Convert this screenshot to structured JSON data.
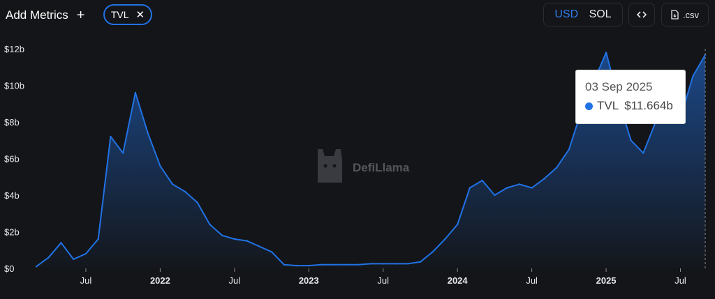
{
  "toolbar": {
    "add_metrics": "Add Metrics",
    "add_icon": "plus-icon",
    "metric_chip": "TVL",
    "chip_close_icon": "close-icon",
    "currency_usd": "USD",
    "currency_sol": "SOL",
    "active_currency": "USD",
    "embed_icon": "code-icon",
    "csv_label": ".csv",
    "csv_icon": "file-download-icon"
  },
  "watermark": {
    "text": "DefiLlama",
    "icon": "llama-logo-icon"
  },
  "tooltip": {
    "date": "03 Sep 2025",
    "series": "TVL",
    "value": "$11.664b"
  },
  "colors": {
    "line": "#2172e5",
    "accent": "#2f7cf0",
    "background": "#141518"
  },
  "chart_data": {
    "type": "area",
    "x_ticks": [
      "Jul",
      "2022",
      "Jul",
      "2023",
      "Jul",
      "2024",
      "Jul",
      "2025",
      "Jul"
    ],
    "y_ticks": [
      "$0",
      "$2b",
      "$4b",
      "$6b",
      "$8b",
      "$10b",
      "$12b"
    ],
    "ylim": [
      0,
      12
    ],
    "y_unit": "USD billions",
    "grid": false,
    "x": [
      "2021-03",
      "2021-04",
      "2021-05",
      "2021-06",
      "2021-07",
      "2021-08",
      "2021-09",
      "2021-10",
      "2021-11",
      "2021-12",
      "2022-01",
      "2022-02",
      "2022-03",
      "2022-04",
      "2022-05",
      "2022-06",
      "2022-07",
      "2022-08",
      "2022-09",
      "2022-10",
      "2022-11",
      "2022-12",
      "2023-01",
      "2023-02",
      "2023-03",
      "2023-04",
      "2023-05",
      "2023-06",
      "2023-07",
      "2023-08",
      "2023-09",
      "2023-10",
      "2023-11",
      "2023-12",
      "2024-01",
      "2024-02",
      "2024-03",
      "2024-04",
      "2024-05",
      "2024-06",
      "2024-07",
      "2024-08",
      "2024-09",
      "2024-10",
      "2024-11",
      "2024-12",
      "2025-01",
      "2025-02",
      "2025-03",
      "2025-04",
      "2025-05",
      "2025-06",
      "2025-07",
      "2025-08",
      "2025-09"
    ],
    "series": [
      {
        "values": [
          0.1,
          0.6,
          1.4,
          0.5,
          0.8,
          1.6,
          7.2,
          6.3,
          9.6,
          7.4,
          5.6,
          4.6,
          4.2,
          3.6,
          2.4,
          1.8,
          1.6,
          1.5,
          1.2,
          0.9,
          0.2,
          0.15,
          0.15,
          0.2,
          0.2,
          0.2,
          0.2,
          0.25,
          0.25,
          0.25,
          0.25,
          0.35,
          0.9,
          1.6,
          2.4,
          4.4,
          4.8,
          4.0,
          4.4,
          4.6,
          4.4,
          4.9,
          5.5,
          6.5,
          8.6,
          10.2,
          11.8,
          9.2,
          7.0,
          6.3,
          8.0,
          8.3,
          8.2,
          10.5,
          11.664
        ]
      }
    ]
  }
}
